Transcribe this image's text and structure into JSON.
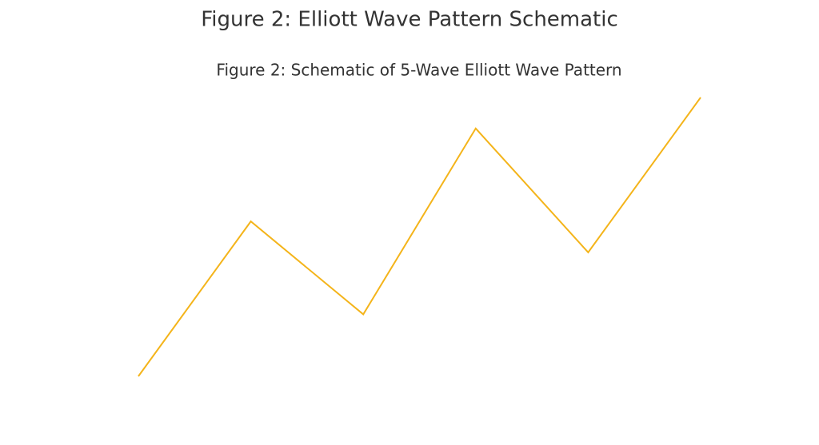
{
  "header": {
    "title": "Figure 2: Elliott Wave Pattern Schematic"
  },
  "chart_data": {
    "type": "line",
    "title": "Figure 2: Schematic of 5-Wave Elliott Wave Pattern",
    "x": [
      0,
      1,
      2,
      3,
      4,
      5
    ],
    "xlim": [
      0,
      5
    ],
    "ylim": [
      0,
      9
    ],
    "series": [
      {
        "color": "#f4b41a",
        "values": [
          0,
          5,
          2,
          8,
          4,
          9
        ]
      }
    ]
  }
}
